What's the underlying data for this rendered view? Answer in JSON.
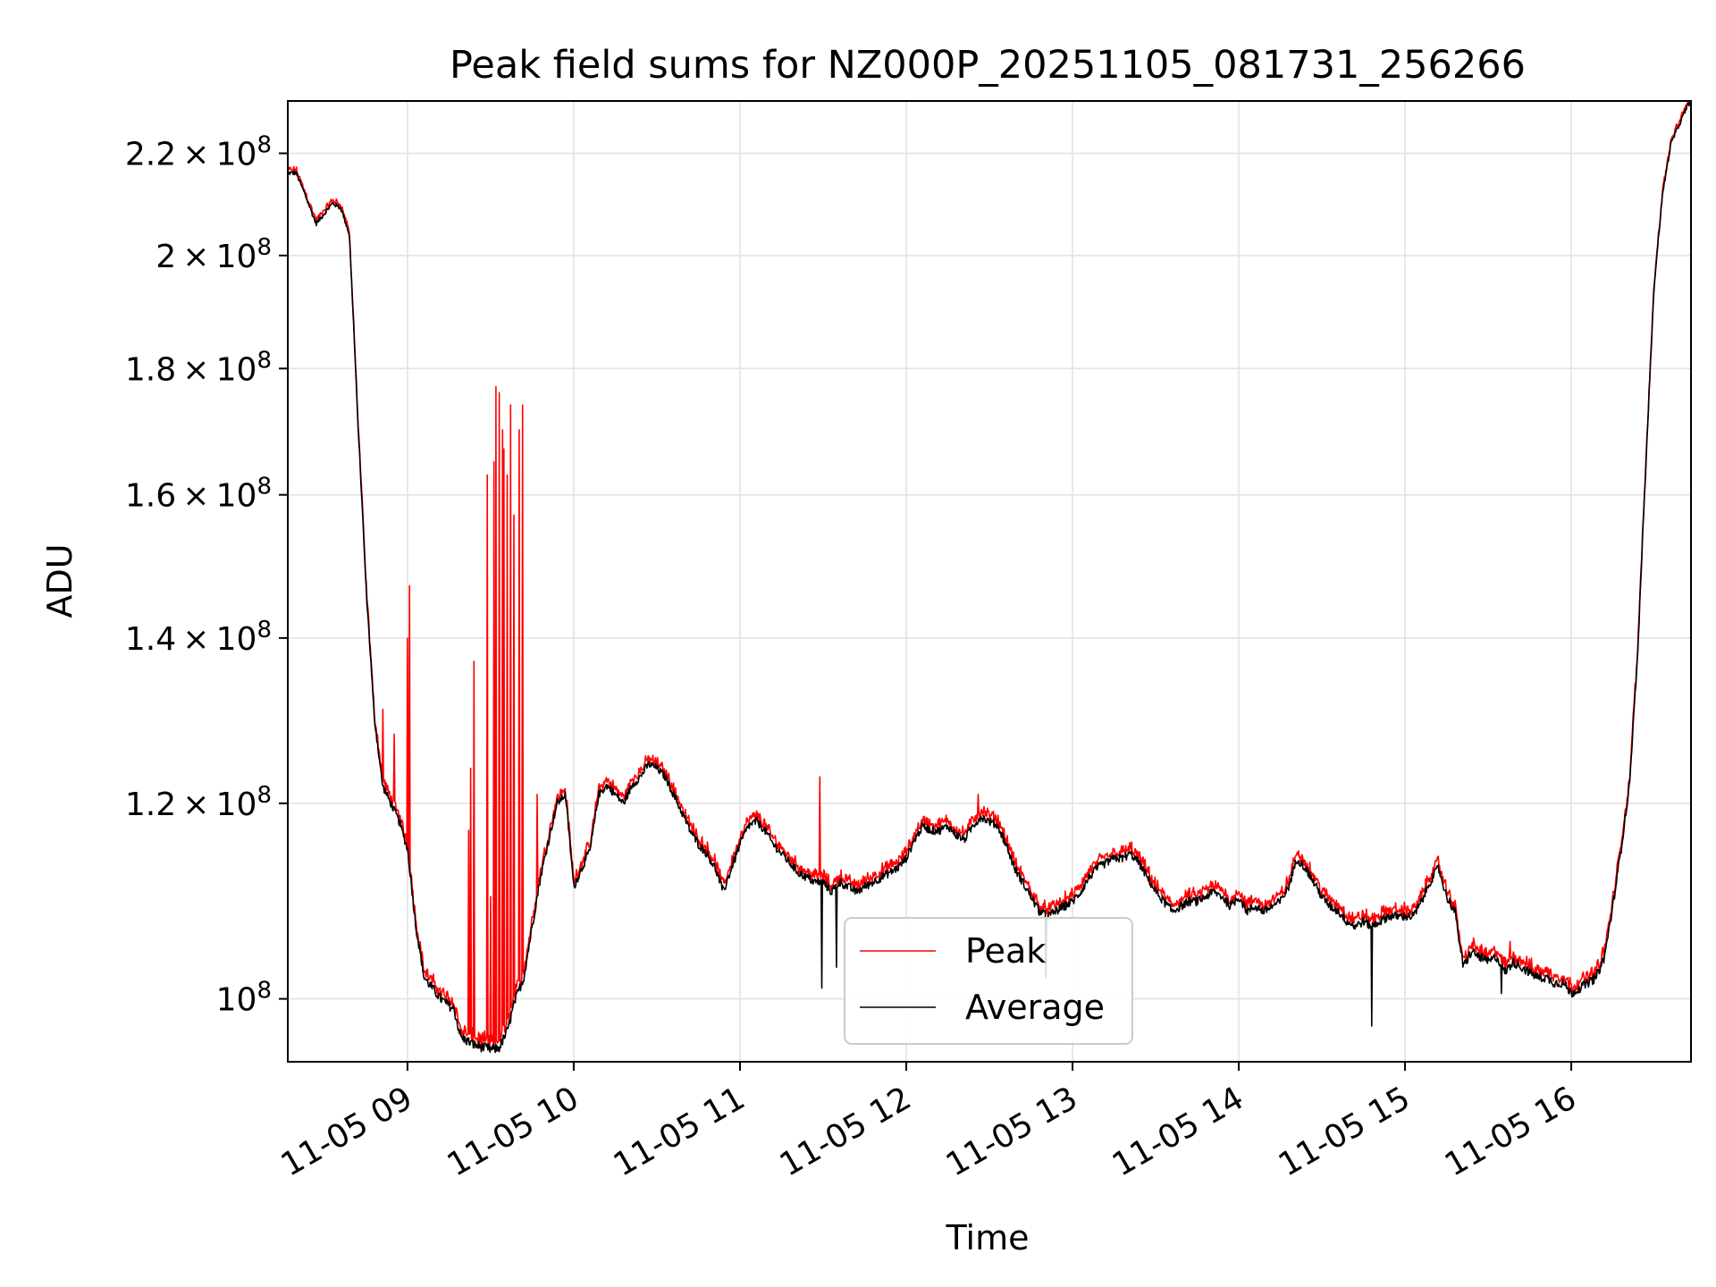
{
  "chart_data": {
    "type": "line",
    "title": "Peak field sums for NZ000P_20251105_081731_256266",
    "xlabel": "Time",
    "ylabel": "ADU",
    "yscale": "log",
    "xlim_hours": [
      8.28,
      16.72
    ],
    "ylim": [
      94300000,
      231000000
    ],
    "grid": true,
    "legend_position": "lower-center",
    "x_ticks": [
      {
        "value": 9,
        "label": "11-05 09"
      },
      {
        "value": 10,
        "label": "11-05 10"
      },
      {
        "value": 11,
        "label": "11-05 11"
      },
      {
        "value": 12,
        "label": "11-05 12"
      },
      {
        "value": 13,
        "label": "11-05 13"
      },
      {
        "value": 14,
        "label": "11-05 14"
      },
      {
        "value": 15,
        "label": "11-05 15"
      },
      {
        "value": 16,
        "label": "11-05 16"
      }
    ],
    "y_ticks": [
      {
        "value": 100000000,
        "mantissa": "",
        "exponent": "8"
      },
      {
        "value": 120000000,
        "mantissa": "1.2",
        "exponent": "8"
      },
      {
        "value": 140000000,
        "mantissa": "1.4",
        "exponent": "8"
      },
      {
        "value": 160000000,
        "mantissa": "1.6",
        "exponent": "8"
      },
      {
        "value": 180000000,
        "mantissa": "1.8",
        "exponent": "8"
      },
      {
        "value": 200000000,
        "mantissa": "2",
        "exponent": "8"
      },
      {
        "value": 220000000,
        "mantissa": "2.2",
        "exponent": "8"
      }
    ],
    "series": [
      {
        "name": "Peak",
        "color": "#ff0000"
      },
      {
        "name": "Average",
        "color": "#000000"
      }
    ],
    "average_points": [
      [
        8.28,
        216.0
      ],
      [
        8.33,
        216.0
      ],
      [
        8.38,
        212.0
      ],
      [
        8.45,
        206.0
      ],
      [
        8.5,
        208.0
      ],
      [
        8.55,
        210.0
      ],
      [
        8.6,
        209.0
      ],
      [
        8.65,
        204.0
      ],
      [
        8.7,
        172.0
      ],
      [
        8.75,
        147.0
      ],
      [
        8.8,
        130.0
      ],
      [
        8.85,
        122.0
      ],
      [
        8.9,
        120.0
      ],
      [
        8.95,
        118.0
      ],
      [
        9.0,
        115.0
      ],
      [
        9.05,
        107.0
      ],
      [
        9.1,
        102.0
      ],
      [
        9.2,
        100.0
      ],
      [
        9.28,
        99.0
      ],
      [
        9.32,
        96.5
      ],
      [
        9.4,
        95.8
      ],
      [
        9.45,
        95.6
      ],
      [
        9.5,
        95.4
      ],
      [
        9.55,
        95.5
      ],
      [
        9.6,
        97.0
      ],
      [
        9.65,
        100.0
      ],
      [
        9.7,
        102.0
      ],
      [
        9.75,
        107.0
      ],
      [
        9.8,
        112.0
      ],
      [
        9.85,
        116.0
      ],
      [
        9.9,
        120.0
      ],
      [
        9.95,
        121.0
      ],
      [
        10.0,
        111.0
      ],
      [
        10.05,
        113.0
      ],
      [
        10.1,
        115.0
      ],
      [
        10.15,
        121.0
      ],
      [
        10.2,
        122.0
      ],
      [
        10.25,
        121.0
      ],
      [
        10.3,
        120.0
      ],
      [
        10.35,
        122.0
      ],
      [
        10.4,
        123.0
      ],
      [
        10.45,
        124.5
      ],
      [
        10.5,
        124.0
      ],
      [
        10.55,
        123.0
      ],
      [
        10.6,
        121.0
      ],
      [
        10.65,
        119.0
      ],
      [
        10.7,
        117.0
      ],
      [
        10.75,
        115.5
      ],
      [
        10.8,
        114.5
      ],
      [
        10.85,
        113.0
      ],
      [
        10.9,
        110.5
      ],
      [
        10.95,
        113.0
      ],
      [
        11.0,
        115.5
      ],
      [
        11.05,
        117.5
      ],
      [
        11.1,
        118.0
      ],
      [
        11.15,
        117.0
      ],
      [
        11.2,
        115.5
      ],
      [
        11.25,
        114.5
      ],
      [
        11.3,
        113.5
      ],
      [
        11.35,
        112.5
      ],
      [
        11.4,
        112.0
      ],
      [
        11.45,
        111.5
      ],
      [
        11.5,
        111.5
      ],
      [
        11.55,
        110.5
      ],
      [
        11.6,
        111.5
      ],
      [
        11.65,
        111.0
      ],
      [
        11.7,
        110.5
      ],
      [
        11.75,
        111.0
      ],
      [
        11.8,
        111.5
      ],
      [
        11.85,
        112.0
      ],
      [
        11.9,
        112.5
      ],
      [
        11.95,
        113.0
      ],
      [
        12.0,
        114.0
      ],
      [
        12.05,
        116.0
      ],
      [
        12.1,
        117.5
      ],
      [
        12.15,
        117.0
      ],
      [
        12.2,
        117.0
      ],
      [
        12.25,
        117.5
      ],
      [
        12.3,
        116.5
      ],
      [
        12.35,
        116.0
      ],
      [
        12.4,
        117.5
      ],
      [
        12.45,
        118.5
      ],
      [
        12.5,
        118.0
      ],
      [
        12.55,
        117.5
      ],
      [
        12.6,
        115.5
      ],
      [
        12.65,
        113.0
      ],
      [
        12.7,
        111.5
      ],
      [
        12.75,
        110.0
      ],
      [
        12.8,
        108.5
      ],
      [
        12.85,
        108.0
      ],
      [
        12.9,
        108.5
      ],
      [
        12.95,
        109.0
      ],
      [
        13.0,
        109.5
      ],
      [
        13.05,
        110.5
      ],
      [
        13.1,
        112.0
      ],
      [
        13.15,
        113.0
      ],
      [
        13.2,
        113.5
      ],
      [
        13.25,
        114.0
      ],
      [
        13.3,
        114.0
      ],
      [
        13.35,
        114.5
      ],
      [
        13.4,
        113.5
      ],
      [
        13.45,
        112.0
      ],
      [
        13.5,
        110.5
      ],
      [
        13.55,
        109.5
      ],
      [
        13.6,
        108.5
      ],
      [
        13.65,
        109.0
      ],
      [
        13.7,
        109.5
      ],
      [
        13.75,
        109.5
      ],
      [
        13.8,
        110.0
      ],
      [
        13.85,
        110.5
      ],
      [
        13.9,
        110.0
      ],
      [
        13.95,
        109.0
      ],
      [
        14.0,
        110.0
      ],
      [
        14.05,
        108.5
      ],
      [
        14.1,
        109.0
      ],
      [
        14.15,
        108.5
      ],
      [
        14.2,
        109.0
      ],
      [
        14.25,
        109.5
      ],
      [
        14.3,
        111.0
      ],
      [
        14.35,
        114.0
      ],
      [
        14.4,
        113.0
      ],
      [
        14.45,
        111.5
      ],
      [
        14.5,
        110.0
      ],
      [
        14.55,
        109.0
      ],
      [
        14.6,
        108.5
      ],
      [
        14.65,
        107.5
      ],
      [
        14.7,
        107.0
      ],
      [
        14.75,
        107.5
      ],
      [
        14.8,
        107.0
      ],
      [
        14.85,
        107.5
      ],
      [
        14.9,
        108.0
      ],
      [
        14.95,
        108.0
      ],
      [
        15.0,
        108.0
      ],
      [
        15.05,
        108.0
      ],
      [
        15.1,
        109.5
      ],
      [
        15.15,
        111.5
      ],
      [
        15.2,
        113.0
      ],
      [
        15.25,
        110.0
      ],
      [
        15.3,
        108.5
      ],
      [
        15.35,
        103.0
      ],
      [
        15.4,
        104.5
      ],
      [
        15.45,
        104.0
      ],
      [
        15.5,
        103.5
      ],
      [
        15.55,
        104.0
      ],
      [
        15.6,
        102.5
      ],
      [
        15.65,
        103.5
      ],
      [
        15.7,
        103.0
      ],
      [
        15.75,
        102.5
      ],
      [
        15.8,
        102.0
      ],
      [
        15.85,
        102.0
      ],
      [
        15.9,
        101.5
      ],
      [
        15.95,
        101.5
      ],
      [
        16.0,
        100.5
      ],
      [
        16.05,
        101.0
      ],
      [
        16.1,
        101.5
      ],
      [
        16.15,
        102.0
      ],
      [
        16.2,
        104.0
      ],
      [
        16.25,
        109.0
      ],
      [
        16.3,
        115.0
      ],
      [
        16.35,
        122.0
      ],
      [
        16.4,
        138.0
      ],
      [
        16.45,
        165.0
      ],
      [
        16.5,
        195.0
      ],
      [
        16.55,
        212.0
      ],
      [
        16.6,
        222.0
      ],
      [
        16.65,
        226.0
      ],
      [
        16.7,
        230.0
      ],
      [
        16.72,
        231.0
      ]
    ],
    "peak_spikes": [
      [
        8.85,
        131.0
      ],
      [
        8.92,
        128.0
      ],
      [
        9.0,
        140.0
      ],
      [
        9.01,
        147.0
      ],
      [
        9.37,
        117.0
      ],
      [
        9.38,
        124.0
      ],
      [
        9.4,
        137.0
      ],
      [
        9.48,
        163.0
      ],
      [
        9.5,
        110.0
      ],
      [
        9.52,
        165.0
      ],
      [
        9.53,
        177.0
      ],
      [
        9.55,
        176.0
      ],
      [
        9.57,
        170.0
      ],
      [
        9.58,
        167.0
      ],
      [
        9.6,
        163.0
      ],
      [
        9.62,
        174.0
      ],
      [
        9.64,
        157.0
      ],
      [
        9.67,
        170.0
      ],
      [
        9.69,
        174.0
      ],
      [
        9.78,
        121.0
      ],
      [
        11.48,
        123.0
      ],
      [
        12.43,
        121.0
      ],
      [
        14.78,
        108.0
      ],
      [
        15.63,
        105.5
      ]
    ],
    "average_dips": [
      [
        11.49,
        101.0
      ],
      [
        11.58,
        103.0
      ],
      [
        12.84,
        102.0
      ],
      [
        14.8,
        97.5
      ],
      [
        15.58,
        100.5
      ]
    ],
    "legend": {
      "peak_label": "Peak",
      "average_label": "Average"
    }
  }
}
